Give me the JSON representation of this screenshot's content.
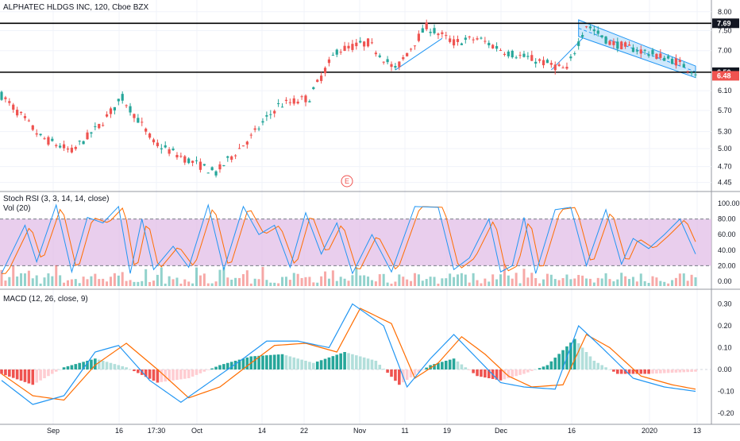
{
  "header": {
    "title": "ALPHATEC HLDGS INC, 120, Cboe BZX"
  },
  "price_axis": {
    "ticks": [
      "8.00",
      "7.50",
      "7.00",
      "6.50",
      "6.10",
      "5.70",
      "5.30",
      "5.00",
      "4.70",
      "4.45"
    ],
    "labels": {
      "high_line": "7.69",
      "low_line": "6.50",
      "last_price": "6.48"
    }
  },
  "event_marker": "E",
  "indicators": {
    "stoch_rsi_title": "Stoch RSI (3, 3, 14, 14, close)",
    "vol_title": "Vol (20)",
    "macd_title": "MACD (12, 26, close, 9)"
  },
  "stoch_axis": [
    "100.00",
    "80.00",
    "60.00",
    "40.00",
    "20.00",
    "0.00"
  ],
  "macd_axis": [
    "0.30",
    "0.20",
    "0.10",
    "0.00",
    "-0.10",
    "-0.20"
  ],
  "time_axis": [
    "Sep",
    "16",
    "17:30",
    "Oct",
    "14",
    "22",
    "Nov",
    "11",
    "19",
    "Dec",
    "16",
    "2020",
    "13"
  ],
  "colors": {
    "up": "#26a69a",
    "down": "#ef5350",
    "stoch_k": "#2196f3",
    "stoch_d": "#ff6d00",
    "band_fill": "#e1bee7",
    "channel_fill": "#bbdefb",
    "last_price_bg": "#ef5350",
    "level_label_bg": "#131722"
  },
  "chart_data": {
    "type": "candlestick",
    "symbol": "ALPHATEC HLDGS INC",
    "interval": "120",
    "exchange": "Cboe BZX",
    "y_scale": "log",
    "ylim": [
      4.35,
      8.15
    ],
    "horizontal_levels": [
      7.69,
      6.5
    ],
    "last_price": 6.48,
    "price_path": [
      [
        0,
        6.0
      ],
      [
        10,
        5.2
      ],
      [
        18,
        4.95
      ],
      [
        25,
        5.4
      ],
      [
        31,
        5.95
      ],
      [
        39,
        5.1
      ],
      [
        48,
        4.8
      ],
      [
        55,
        4.6
      ],
      [
        64,
        5.2
      ],
      [
        71,
        5.8
      ],
      [
        79,
        5.95
      ],
      [
        86,
        7.0
      ],
      [
        94,
        7.2
      ],
      [
        101,
        6.55
      ],
      [
        109,
        7.6
      ],
      [
        116,
        7.2
      ],
      [
        122,
        7.3
      ],
      [
        130,
        6.95
      ],
      [
        138,
        6.75
      ],
      [
        145,
        6.55
      ],
      [
        150,
        7.65
      ],
      [
        156,
        7.2
      ],
      [
        164,
        7.0
      ],
      [
        173,
        6.75
      ],
      [
        178,
        6.5
      ]
    ],
    "stoch_rsi": {
      "levels": [
        80,
        20
      ],
      "k": [
        [
          0,
          10
        ],
        [
          6,
          72
        ],
        [
          9,
          25
        ],
        [
          14,
          98
        ],
        [
          18,
          12
        ],
        [
          22,
          82
        ],
        [
          26,
          75
        ],
        [
          30,
          96
        ],
        [
          33,
          10
        ],
        [
          36,
          80
        ],
        [
          39,
          15
        ],
        [
          44,
          45
        ],
        [
          48,
          18
        ],
        [
          53,
          98
        ],
        [
          57,
          15
        ],
        [
          62,
          96
        ],
        [
          66,
          60
        ],
        [
          70,
          72
        ],
        [
          74,
          18
        ],
        [
          78,
          88
        ],
        [
          82,
          35
        ],
        [
          86,
          75
        ],
        [
          90,
          10
        ],
        [
          95,
          60
        ],
        [
          100,
          12
        ],
        [
          106,
          96
        ],
        [
          112,
          95
        ],
        [
          116,
          15
        ],
        [
          120,
          30
        ],
        [
          125,
          80
        ],
        [
          128,
          12
        ],
        [
          131,
          20
        ],
        [
          134,
          82
        ],
        [
          137,
          10
        ],
        [
          142,
          92
        ],
        [
          146,
          95
        ],
        [
          150,
          20
        ],
        [
          155,
          92
        ],
        [
          159,
          22
        ],
        [
          162,
          55
        ],
        [
          166,
          42
        ],
        [
          170,
          60
        ],
        [
          174,
          80
        ],
        [
          178,
          35
        ]
      ]
    },
    "macd": {
      "histogram": [
        [
          0,
          -0.02
        ],
        [
          8,
          -0.07
        ],
        [
          16,
          0.01
        ],
        [
          24,
          0.05
        ],
        [
          32,
          0.01
        ],
        [
          40,
          -0.06
        ],
        [
          48,
          -0.04
        ],
        [
          56,
          0.02
        ],
        [
          64,
          0.06
        ],
        [
          72,
          0.07
        ],
        [
          80,
          0.03
        ],
        [
          88,
          0.08
        ],
        [
          96,
          0.04
        ],
        [
          102,
          -0.07
        ],
        [
          110,
          0.02
        ],
        [
          116,
          0.05
        ],
        [
          122,
          -0.03
        ],
        [
          128,
          -0.05
        ],
        [
          134,
          -0.02
        ],
        [
          140,
          0.02
        ],
        [
          147,
          0.14
        ],
        [
          152,
          0.04
        ],
        [
          158,
          -0.02
        ],
        [
          166,
          -0.02
        ],
        [
          172,
          -0.015
        ],
        [
          178,
          -0.01
        ]
      ],
      "macd_line": [
        [
          0,
          -0.05
        ],
        [
          8,
          -0.16
        ],
        [
          16,
          -0.12
        ],
        [
          24,
          0.08
        ],
        [
          30,
          0.11
        ],
        [
          38,
          -0.05
        ],
        [
          46,
          -0.15
        ],
        [
          54,
          -0.05
        ],
        [
          62,
          0.05
        ],
        [
          68,
          0.13
        ],
        [
          76,
          0.13
        ],
        [
          84,
          0.1
        ],
        [
          90,
          0.3
        ],
        [
          98,
          0.2
        ],
        [
          104,
          -0.08
        ],
        [
          110,
          0.05
        ],
        [
          116,
          0.16
        ],
        [
          122,
          0.05
        ],
        [
          128,
          -0.06
        ],
        [
          134,
          -0.08
        ],
        [
          142,
          -0.09
        ],
        [
          148,
          0.2
        ],
        [
          154,
          0.1
        ],
        [
          162,
          -0.04
        ],
        [
          170,
          -0.08
        ],
        [
          178,
          -0.1
        ]
      ],
      "signal_line": [
        [
          0,
          -0.02
        ],
        [
          8,
          -0.12
        ],
        [
          16,
          -0.14
        ],
        [
          24,
          0.02
        ],
        [
          32,
          0.12
        ],
        [
          40,
          0.0
        ],
        [
          48,
          -0.13
        ],
        [
          56,
          -0.08
        ],
        [
          64,
          0.03
        ],
        [
          70,
          0.11
        ],
        [
          78,
          0.12
        ],
        [
          86,
          0.08
        ],
        [
          92,
          0.28
        ],
        [
          100,
          0.21
        ],
        [
          106,
          -0.04
        ],
        [
          112,
          0.03
        ],
        [
          118,
          0.15
        ],
        [
          124,
          0.07
        ],
        [
          130,
          -0.03
        ],
        [
          136,
          -0.08
        ],
        [
          144,
          -0.07
        ],
        [
          150,
          0.16
        ],
        [
          156,
          0.1
        ],
        [
          164,
          -0.03
        ],
        [
          172,
          -0.07
        ],
        [
          178,
          -0.09
        ]
      ]
    }
  }
}
